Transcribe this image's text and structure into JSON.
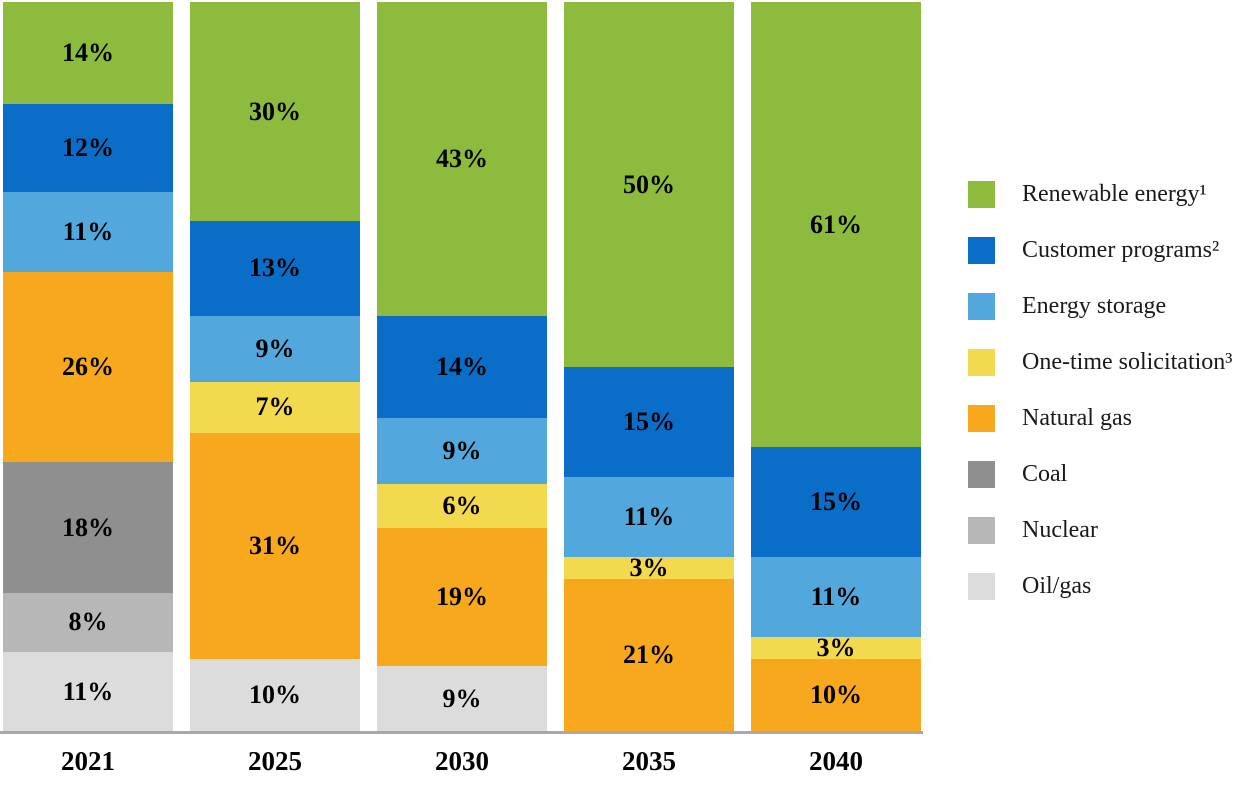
{
  "figure": {
    "background": "#FFFFFF"
  },
  "chart_data": {
    "type": "bar",
    "subtype": "stacked_vertical",
    "unit": "%",
    "categories": [
      "2021",
      "2025",
      "2030",
      "2035",
      "2040"
    ],
    "series": [
      {
        "name": "Renewable energy¹",
        "color": "#8CBB3D",
        "values": [
          14,
          30,
          43,
          50,
          61
        ]
      },
      {
        "name": "Customer programs²",
        "color": "#0A6DC8",
        "values": [
          12,
          13,
          14,
          15,
          15
        ]
      },
      {
        "name": "Energy storage",
        "color": "#52A8DC",
        "values": [
          11,
          9,
          9,
          11,
          11
        ]
      },
      {
        "name": "One-time solicitation³",
        "color": "#F3D94E",
        "values": [
          0,
          7,
          6,
          3,
          3
        ]
      },
      {
        "name": "Natural gas",
        "color": "#F7A81C",
        "values": [
          26,
          31,
          19,
          21,
          10
        ]
      },
      {
        "name": "Coal",
        "color": "#8F8F8F",
        "values": [
          18,
          0,
          0,
          0,
          0
        ]
      },
      {
        "name": "Nuclear",
        "color": "#B7B7B7",
        "values": [
          8,
          0,
          0,
          0,
          0
        ]
      },
      {
        "name": "Oil/gas",
        "color": "#DCDCDC",
        "values": [
          11,
          10,
          9,
          0,
          0
        ]
      }
    ],
    "ylim": [
      0,
      100
    ],
    "grid": false,
    "legend_position": "right",
    "value_label_suffix": "%",
    "axis_line_color": "#A8A8A8"
  }
}
